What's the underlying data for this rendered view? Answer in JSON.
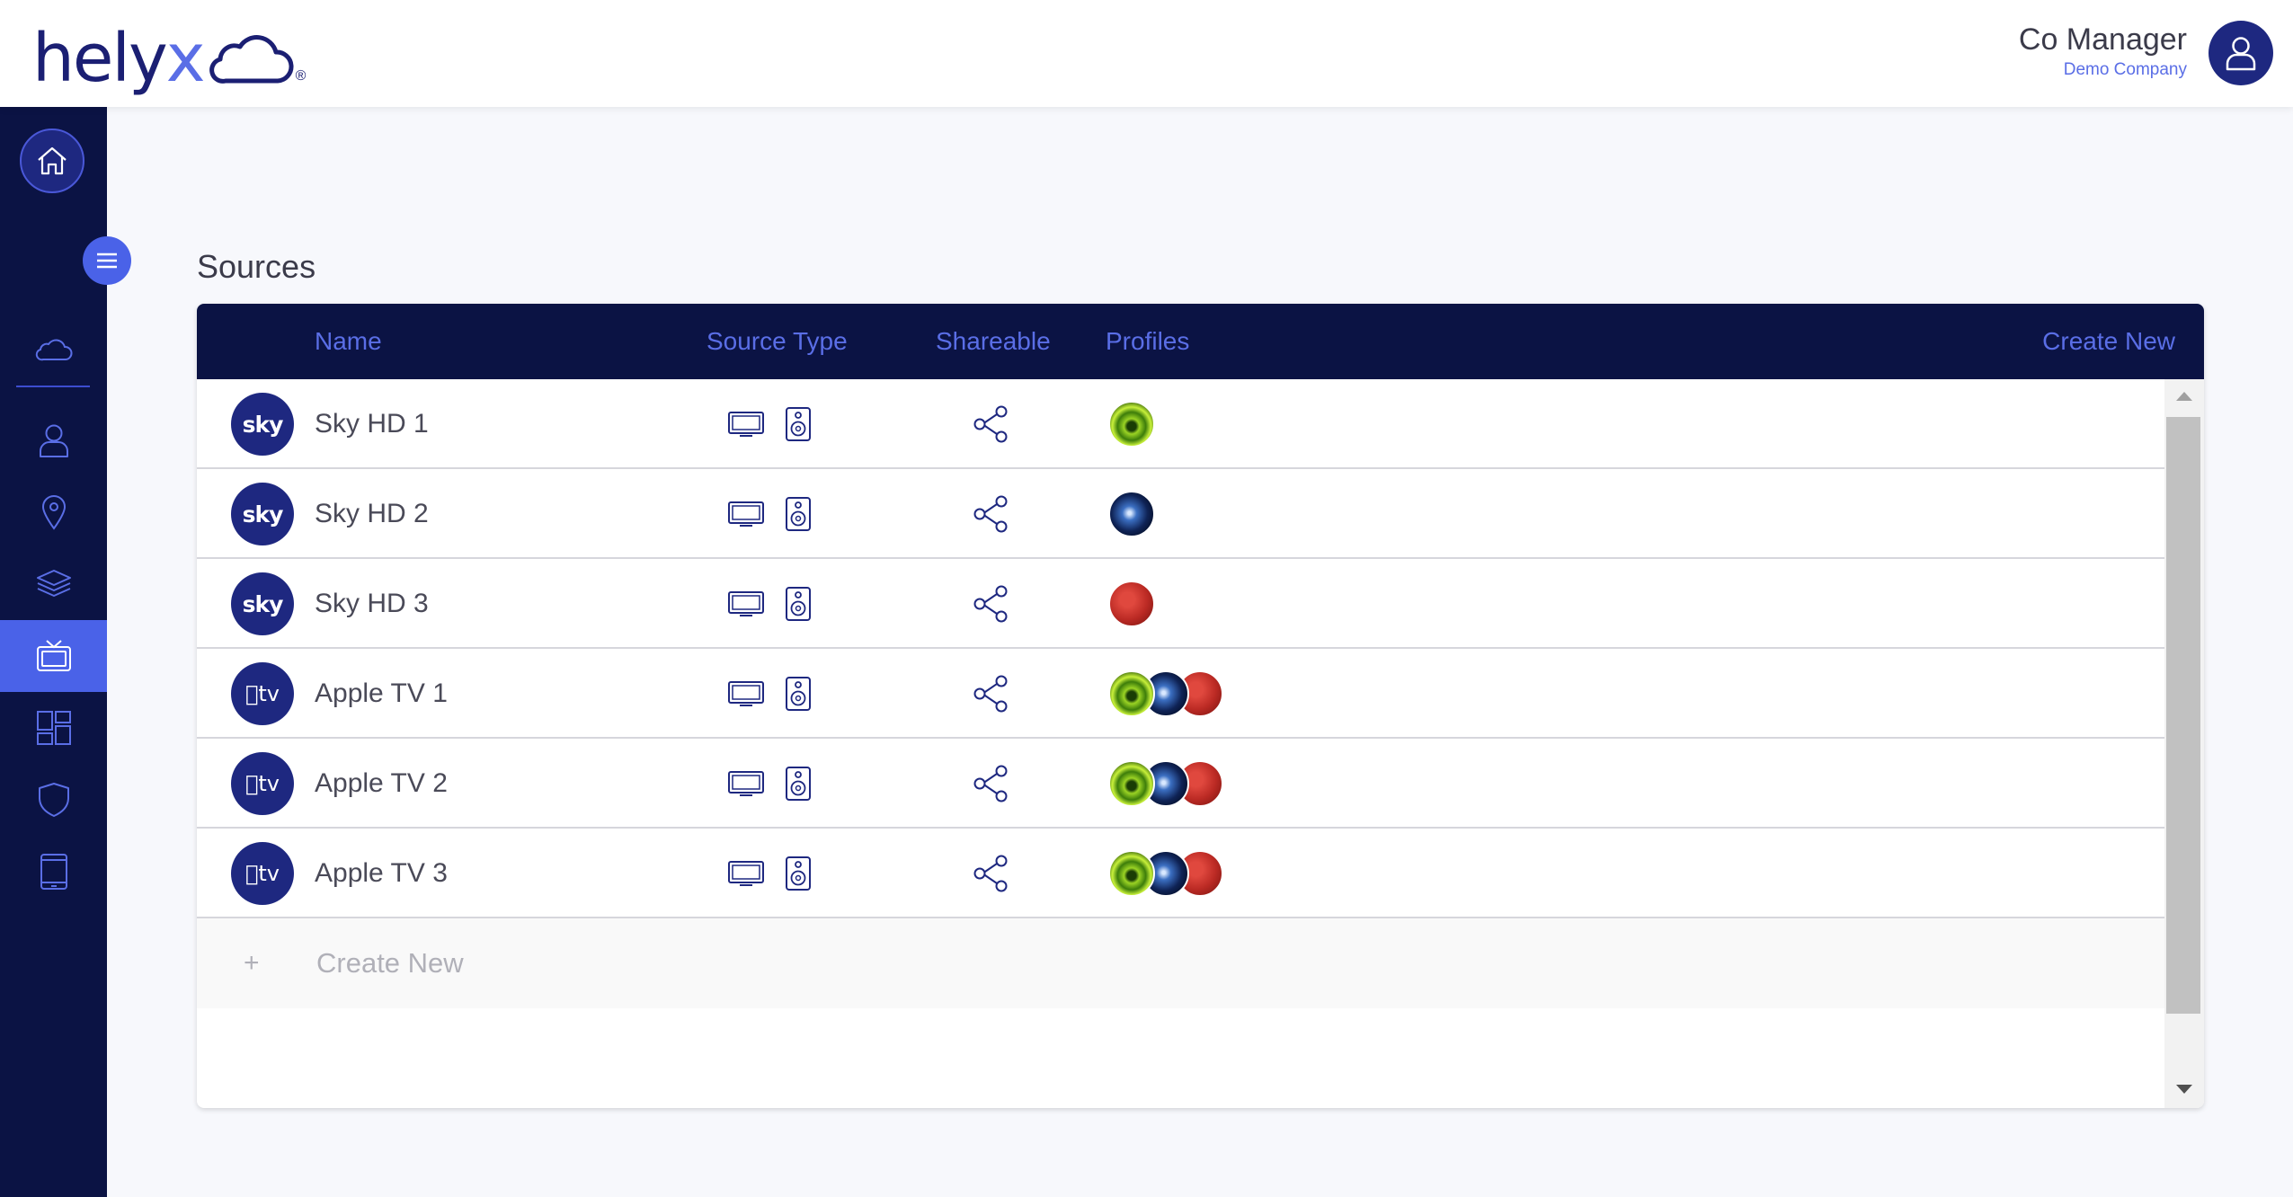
{
  "brand": {
    "logo_text_main": "hely",
    "logo_text_accent": "x",
    "logo_reg": "®"
  },
  "user": {
    "name": "Co Manager",
    "company": "Demo Company"
  },
  "sidebar": {
    "items": [
      {
        "icon": "cloud-icon"
      },
      {
        "icon": "user-icon"
      },
      {
        "icon": "location-pin-icon"
      },
      {
        "icon": "layers-icon"
      },
      {
        "icon": "tv-icon",
        "active": true
      },
      {
        "icon": "dashboard-icon"
      },
      {
        "icon": "shield-icon"
      },
      {
        "icon": "tablet-icon"
      }
    ]
  },
  "page": {
    "title": "Sources"
  },
  "table": {
    "columns": {
      "name": "Name",
      "source_type": "Source Type",
      "shareable": "Shareable",
      "profiles": "Profiles",
      "create_new": "Create New"
    },
    "rows": [
      {
        "logo": "sky",
        "name": "Sky HD 1",
        "types": [
          "tv-icon",
          "speaker-icon"
        ],
        "shareable": true,
        "profiles": [
          "green"
        ]
      },
      {
        "logo": "sky",
        "name": "Sky HD 2",
        "types": [
          "tv-icon",
          "speaker-icon"
        ],
        "shareable": true,
        "profiles": [
          "blue"
        ]
      },
      {
        "logo": "sky",
        "name": "Sky HD 3",
        "types": [
          "tv-icon",
          "speaker-icon"
        ],
        "shareable": true,
        "profiles": [
          "red"
        ]
      },
      {
        "logo": "tv",
        "name": "Apple TV 1",
        "types": [
          "tv-icon",
          "speaker-icon"
        ],
        "shareable": true,
        "profiles": [
          "green",
          "blue",
          "red"
        ]
      },
      {
        "logo": "tv",
        "name": "Apple TV 2",
        "types": [
          "tv-icon",
          "speaker-icon"
        ],
        "shareable": true,
        "profiles": [
          "green",
          "blue",
          "red"
        ]
      },
      {
        "logo": "tv",
        "name": "Apple TV 3",
        "types": [
          "tv-icon",
          "speaker-icon"
        ],
        "shareable": true,
        "profiles": [
          "green",
          "blue",
          "red"
        ]
      }
    ],
    "create_row": {
      "plus": "+",
      "label": "Create New"
    }
  },
  "colors": {
    "navy": "#0b1344",
    "accent": "#5a6ee6",
    "active": "#4a62e8",
    "avatar": "#1e2880"
  }
}
